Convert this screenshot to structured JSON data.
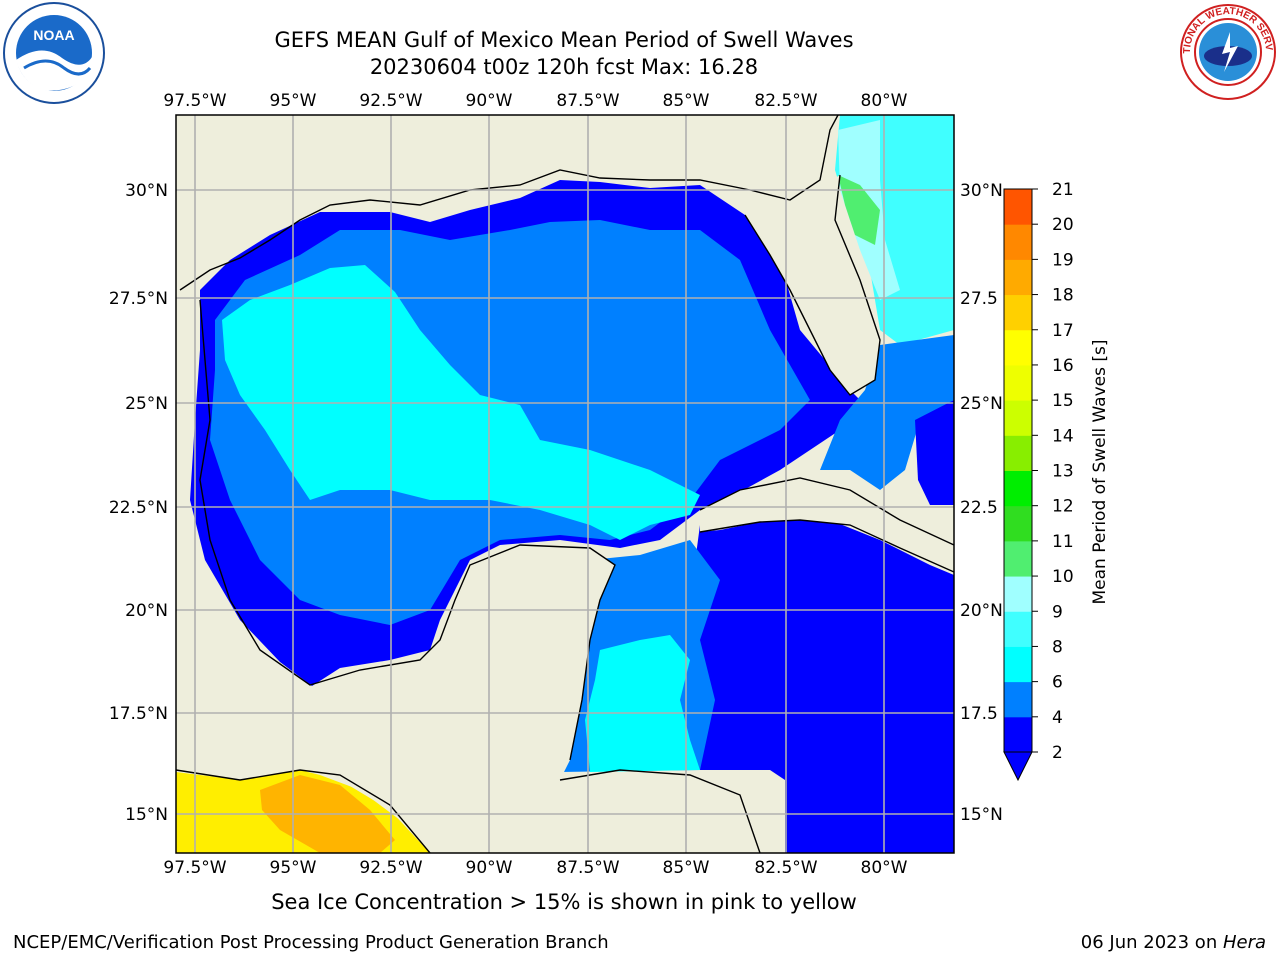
{
  "header": {
    "title_line1": "GEFS MEAN Gulf of Mexico Mean Period of Swell Waves",
    "title_line2": "20230604 t00z 120h fcst   Max: 16.28"
  },
  "logos": {
    "left": {
      "icon": "noaa-logo-icon",
      "text": "NOAA"
    },
    "right": {
      "icon": "nws-logo-icon",
      "text": "NATIONAL WEATHER SERVICE"
    }
  },
  "map": {
    "lon_ticks": [
      "97.5°W",
      "95°W",
      "92.5°W",
      "90°W",
      "87.5°W",
      "85°W",
      "82.5°W",
      "80°W"
    ],
    "lat_ticks_left": [
      "30°N",
      "27.5°N",
      "25°N",
      "22.5°N",
      "20°N",
      "17.5°N",
      "15°N"
    ],
    "lat_ticks_right": [
      "30°N",
      "27.5",
      "25°N",
      "22.5",
      "20°N",
      "17.5",
      "15°N"
    ],
    "land_color": "#eeeedc",
    "coast_color": "#000000",
    "grid_color": "#b0b0b0"
  },
  "colorbar": {
    "label": "Mean Period of Swell Waves [s]",
    "ticks": [
      "2",
      "4",
      "6",
      "8",
      "9",
      "10",
      "11",
      "12",
      "13",
      "14",
      "15",
      "16",
      "17",
      "18",
      "19",
      "20",
      "21"
    ],
    "colors": [
      "#0000ff",
      "#0080ff",
      "#00ffff",
      "#40ffff",
      "#a0ffff",
      "#50ee70",
      "#30dd20",
      "#00ee00",
      "#88ee00",
      "#ccff00",
      "#eeff00",
      "#ffff00",
      "#ffd000",
      "#ffaa00",
      "#ff8800",
      "#ff5500",
      "#ff2a00",
      "#ff0000"
    ]
  },
  "footer": {
    "note": "Sea Ice Concentration > 15% is shown in pink to yellow",
    "credit": "NCEP/EMC/Verification Post Processing Product Generation Branch",
    "date": "06 Jun 2023 on ",
    "host": "Hera"
  }
}
